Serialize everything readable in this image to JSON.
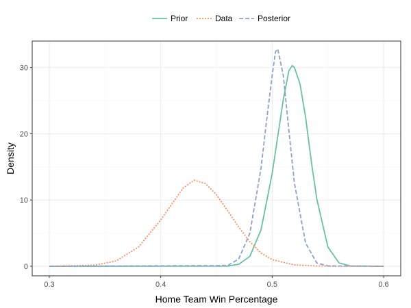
{
  "chart_data": {
    "type": "line",
    "xlabel": "Home Team Win Percentage",
    "ylabel": "Density",
    "xlim": [
      0.3,
      0.6
    ],
    "ylim": [
      0,
      34
    ],
    "x_ticks": [
      0.3,
      0.4,
      0.5,
      0.6
    ],
    "x_tick_labels": [
      "0.3",
      "0.4",
      "0.5",
      "0.6"
    ],
    "y_ticks": [
      0,
      10,
      20,
      30
    ],
    "y_tick_labels": [
      "0",
      "10",
      "20",
      "30"
    ],
    "grid": true,
    "legend_position": "top",
    "series": [
      {
        "name": "Prior",
        "color": "#66c2a5",
        "style": "solid",
        "x": [
          0.3,
          0.46,
          0.47,
          0.48,
          0.49,
          0.5,
          0.505,
          0.51,
          0.515,
          0.518,
          0.52,
          0.525,
          0.53,
          0.535,
          0.54,
          0.55,
          0.56,
          0.57,
          0.6
        ],
        "y": [
          0,
          0.02,
          0.3,
          1.5,
          5.5,
          14.0,
          19.6,
          25.2,
          29.5,
          30.3,
          30.0,
          27.5,
          22.5,
          16.0,
          10.2,
          2.9,
          0.5,
          0.05,
          0
        ]
      },
      {
        "name": "Data",
        "color": "#fc8d62",
        "style": "dotted",
        "x": [
          0.3,
          0.34,
          0.36,
          0.38,
          0.4,
          0.41,
          0.42,
          0.43,
          0.44,
          0.45,
          0.46,
          0.47,
          0.48,
          0.49,
          0.5,
          0.52,
          0.54,
          0.56,
          0.6
        ],
        "y": [
          0,
          0.15,
          0.8,
          2.9,
          7.0,
          9.4,
          11.8,
          13.0,
          12.5,
          10.8,
          8.4,
          5.9,
          3.7,
          2.0,
          1.0,
          0.2,
          0.05,
          0,
          0
        ]
      },
      {
        "name": "Posterior",
        "color": "#8da0cb",
        "style": "dashed",
        "x": [
          0.3,
          0.46,
          0.47,
          0.48,
          0.49,
          0.495,
          0.5,
          0.503,
          0.505,
          0.51,
          0.515,
          0.52,
          0.53,
          0.54,
          0.55,
          0.6
        ],
        "y": [
          0,
          0.1,
          1.1,
          5.0,
          14.8,
          22.0,
          28.8,
          32.4,
          32.8,
          28.8,
          20.5,
          12.5,
          3.5,
          0.5,
          0.05,
          0
        ]
      }
    ]
  }
}
